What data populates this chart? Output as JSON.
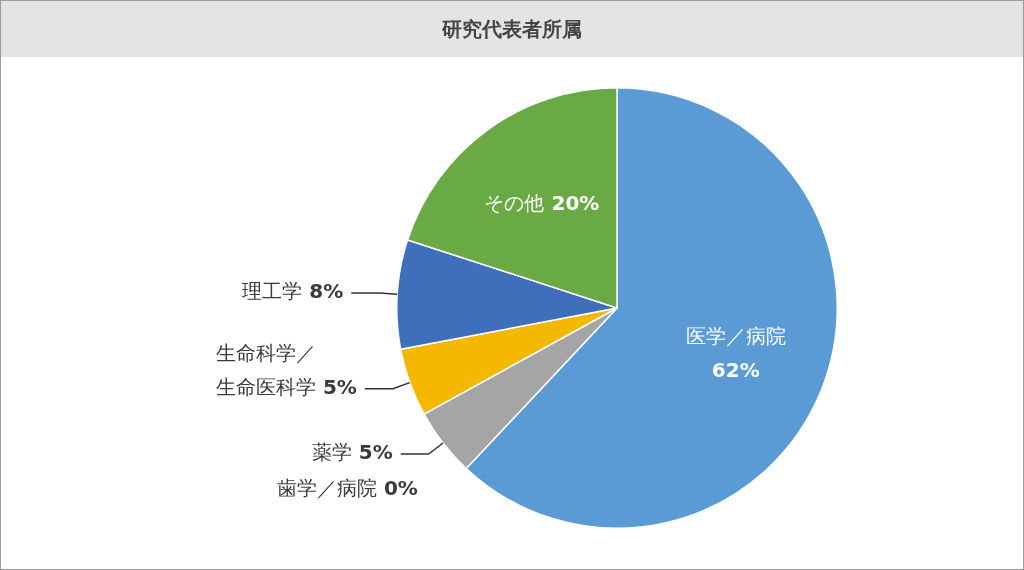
{
  "chart_data": {
    "type": "pie",
    "title": "研究代表者所属",
    "categories": [
      "医学／病院",
      "歯学／病院",
      "薬学",
      "生命科学／生命医科学",
      "理工学",
      "その他"
    ],
    "values": [
      62,
      0,
      5,
      5,
      8,
      20
    ],
    "value_labels": [
      "62%",
      "0%",
      "5%",
      "5%",
      "8%",
      "20%"
    ],
    "colors": [
      "#5b9bd5",
      "#c7a8c0",
      "#a5a5a5",
      "#f5b800",
      "#3f6fbb",
      "#6aaa45"
    ]
  }
}
